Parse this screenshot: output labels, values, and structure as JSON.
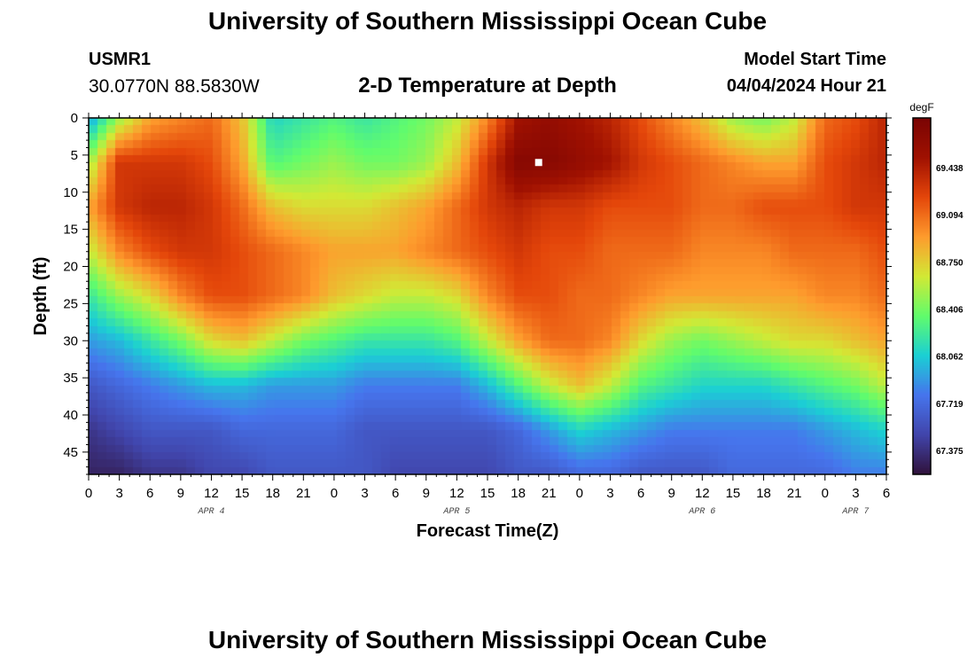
{
  "header": {
    "title": "University of Southern Mississippi Ocean Cube",
    "station_id": "USMR1",
    "coordinates": "30.0770N  88.5830W",
    "plot_title": "2-D Temperature at Depth",
    "start_label": "Model Start Time",
    "start_value": "04/04/2024 Hour 21"
  },
  "footer": {
    "title": "University of Southern Mississippi Ocean Cube"
  },
  "chart_data": {
    "type": "heatmap",
    "title": "2-D Temperature at Depth",
    "xlabel": "Forecast Time(Z)",
    "ylabel": "Depth (ft)",
    "x_unit": "hours since 04/04 00Z",
    "xlim": [
      0,
      78
    ],
    "ylim": [
      0,
      48
    ],
    "y_inverted": true,
    "x_ticks": [
      0,
      3,
      6,
      9,
      12,
      15,
      18,
      21,
      24,
      27,
      30,
      33,
      36,
      39,
      42,
      45,
      48,
      51,
      54,
      57,
      60,
      63,
      66,
      69,
      72,
      75,
      78
    ],
    "x_tick_labels": [
      "0",
      "3",
      "6",
      "9",
      "12",
      "15",
      "18",
      "21",
      "0",
      "3",
      "6",
      "9",
      "12",
      "15",
      "18",
      "21",
      "0",
      "3",
      "6",
      "9",
      "12",
      "15",
      "18",
      "21",
      "0",
      "3",
      "6"
    ],
    "y_ticks": [
      0,
      5,
      10,
      15,
      20,
      25,
      30,
      35,
      40,
      45
    ],
    "y_tick_labels": [
      "0",
      "5",
      "10",
      "15",
      "20",
      "25",
      "30",
      "35",
      "40",
      "45"
    ],
    "date_labels": [
      {
        "text": "APR 4",
        "x": 12
      },
      {
        "text": "APR 5",
        "x": 36
      },
      {
        "text": "APR 6",
        "x": 60
      },
      {
        "text": "APR 7",
        "x": 75
      }
    ],
    "colorbar": {
      "unit": "degF",
      "min": 67.2,
      "max": 69.8,
      "tick_values": [
        67.375,
        67.719,
        68.062,
        68.406,
        68.75,
        69.094,
        69.438
      ],
      "tick_labels": [
        "67.375",
        "67.719",
        "68.062",
        "68.406",
        "68.750",
        "69.094",
        "69.438"
      ],
      "colors": [
        "#30123b",
        "#4145ab",
        "#4675ed",
        "#1bcfd4",
        "#61fc6c",
        "#d2e935",
        "#fe9b2d",
        "#e4460a",
        "#a01101",
        "#7a0403"
      ]
    },
    "marker": {
      "x": 44,
      "y": 6,
      "color": "#ffffff"
    },
    "value_grid": {
      "depths": [
        0,
        6,
        12,
        18,
        24,
        30,
        36,
        42,
        48
      ],
      "times": [
        0,
        3,
        6,
        9,
        12,
        15,
        18,
        21,
        24,
        27,
        30,
        33,
        36,
        39,
        42,
        45,
        48,
        51,
        54,
        57,
        60,
        63,
        66,
        69,
        72,
        75,
        78
      ],
      "values": [
        [
          67.9,
          68.5,
          68.9,
          69.0,
          69.1,
          68.8,
          68.1,
          68.2,
          68.3,
          68.2,
          68.3,
          68.4,
          68.6,
          69.0,
          69.5,
          69.6,
          69.5,
          69.4,
          69.2,
          69.0,
          68.8,
          68.5,
          68.4,
          68.6,
          69.1,
          69.2,
          69.4
        ],
        [
          68.5,
          69.3,
          69.3,
          69.3,
          69.2,
          68.9,
          68.3,
          68.4,
          68.5,
          68.4,
          68.4,
          68.5,
          68.8,
          69.3,
          69.7,
          69.7,
          69.6,
          69.5,
          69.3,
          69.2,
          69.1,
          69.0,
          68.9,
          68.9,
          69.2,
          69.3,
          69.4
        ],
        [
          68.9,
          69.3,
          69.4,
          69.4,
          69.3,
          69.1,
          68.8,
          68.7,
          68.7,
          68.7,
          68.8,
          68.9,
          69.1,
          69.3,
          69.4,
          69.3,
          69.3,
          69.2,
          69.2,
          69.2,
          69.1,
          69.1,
          69.2,
          69.2,
          69.2,
          69.3,
          69.3
        ],
        [
          68.6,
          69.0,
          69.2,
          69.3,
          69.3,
          69.2,
          69.1,
          69.0,
          68.9,
          68.9,
          68.9,
          69.0,
          69.1,
          69.2,
          69.3,
          69.2,
          69.2,
          69.1,
          69.1,
          69.1,
          69.0,
          69.0,
          69.0,
          69.1,
          69.1,
          69.1,
          69.2
        ],
        [
          68.2,
          68.5,
          68.7,
          69.0,
          69.2,
          69.2,
          69.1,
          69.0,
          68.8,
          68.7,
          68.6,
          68.6,
          68.7,
          69.0,
          69.2,
          69.2,
          69.1,
          69.1,
          69.0,
          68.9,
          68.9,
          68.9,
          68.9,
          68.9,
          69.0,
          69.0,
          69.1
        ],
        [
          67.9,
          68.0,
          68.2,
          68.4,
          68.7,
          68.8,
          68.6,
          68.4,
          68.3,
          68.2,
          68.2,
          68.2,
          68.3,
          68.6,
          68.9,
          69.1,
          69.1,
          69.0,
          68.7,
          68.5,
          68.4,
          68.5,
          68.6,
          68.7,
          68.7,
          68.8,
          68.9
        ],
        [
          67.6,
          67.7,
          67.8,
          67.9,
          68.0,
          68.0,
          67.9,
          67.9,
          67.9,
          67.8,
          67.8,
          67.8,
          67.8,
          68.0,
          68.3,
          68.6,
          68.8,
          68.6,
          68.3,
          68.2,
          68.1,
          68.1,
          68.1,
          68.2,
          68.3,
          68.4,
          68.6
        ],
        [
          67.4,
          67.5,
          67.6,
          67.6,
          67.6,
          67.7,
          67.7,
          67.7,
          67.7,
          67.6,
          67.6,
          67.6,
          67.6,
          67.6,
          67.7,
          67.9,
          68.1,
          68.0,
          67.9,
          67.8,
          67.8,
          67.8,
          67.8,
          67.8,
          67.9,
          68.0,
          68.1
        ],
        [
          67.3,
          67.3,
          67.4,
          67.4,
          67.5,
          67.5,
          67.6,
          67.6,
          67.6,
          67.6,
          67.5,
          67.5,
          67.5,
          67.5,
          67.6,
          67.6,
          67.7,
          67.7,
          67.6,
          67.6,
          67.6,
          67.7,
          67.7,
          67.7,
          67.7,
          67.8,
          67.8
        ]
      ]
    }
  }
}
